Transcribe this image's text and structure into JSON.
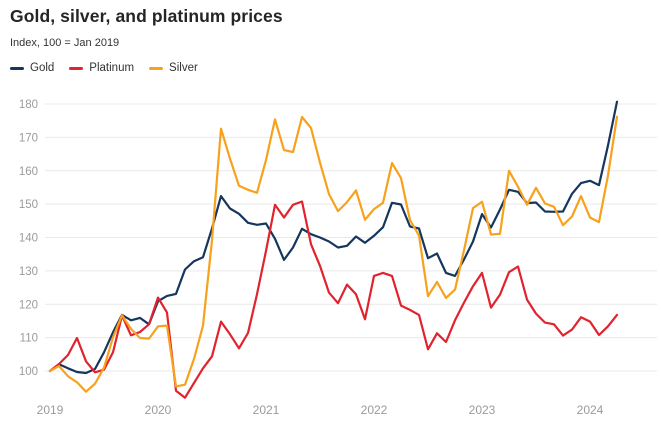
{
  "header": {
    "title": "Gold, silver, and platinum prices",
    "subtitle": "Index, 100 = Jan 2019"
  },
  "chart_data": {
    "type": "line",
    "title": "Gold, silver, and platinum prices",
    "subtitle": "Index, 100 = Jan 2019",
    "x_unit": "month",
    "x_start": "2019-01",
    "x_end": "2024-04",
    "x_tick_labels": [
      "2019",
      "2020",
      "2021",
      "2022",
      "2023",
      "2024"
    ],
    "y_ticks": [
      100,
      110,
      120,
      130,
      140,
      150,
      160,
      170,
      180
    ],
    "ylim": [
      92,
      181
    ],
    "grid": "horizontal",
    "legend_position": "top",
    "axis_text_color": "#9b9b9b",
    "grid_color": "#e9e9e9",
    "series": [
      {
        "name": "Gold",
        "color": "#15365d",
        "values": [
          100,
          102,
          100.8,
          99.7,
          99.4,
          100.6,
          105.6,
          111.6,
          116.8,
          115.2,
          115.9,
          114,
          120.9,
          122.5,
          123.1,
          130.4,
          132.9,
          134.1,
          142.7,
          152.4,
          148.7,
          147.1,
          144.4,
          143.8,
          144.2,
          139.6,
          133.3,
          137,
          142.6,
          141,
          140,
          138.8,
          137,
          137.5,
          140.3,
          138.4,
          140.5,
          143.1,
          150.4,
          149.9,
          143.3,
          142.7,
          133.8,
          135.2,
          129.4,
          128.5,
          133.4,
          138.8,
          147,
          143,
          148.4,
          154.3,
          153.7,
          150.3,
          150.5,
          147.8,
          147.7,
          147.8,
          153.1,
          156.3,
          157,
          155.7,
          167.6,
          180.7
        ]
      },
      {
        "name": "Platinum",
        "color": "#e0232e",
        "values": [
          100,
          102.1,
          104.8,
          109.9,
          102.9,
          99.6,
          100.4,
          105.6,
          116.6,
          110.7,
          111.7,
          114,
          122,
          117.5,
          94.1,
          92,
          96.4,
          100.8,
          104.4,
          114.8,
          111,
          106.8,
          111.4,
          123,
          136,
          149.8,
          146,
          149.8,
          150.8,
          138,
          131.5,
          123.5,
          120.3,
          125.9,
          123,
          115.5,
          128.5,
          129.4,
          128.5,
          119.6,
          118.3,
          116.8,
          106.5,
          111.3,
          108.7,
          115.2,
          120.5,
          125.4,
          129.4,
          119,
          122.9,
          129.6,
          131.3,
          121.4,
          117.2,
          114.5,
          114,
          110.6,
          112.4,
          116.1,
          114.8,
          110.8,
          113.4,
          116.8
        ]
      },
      {
        "name": "Silver",
        "color": "#f7a11c",
        "values": [
          100,
          101.5,
          98.4,
          96.6,
          93.8,
          96.2,
          101,
          110.1,
          116.7,
          112.6,
          109.9,
          109.7,
          113.4,
          113.6,
          95.4,
          95.9,
          103.6,
          113.6,
          139.2,
          172.6,
          163.6,
          155.5,
          154.3,
          153.4,
          163.2,
          175.4,
          166.2,
          165.6,
          176.1,
          172.8,
          162.4,
          153,
          147.9,
          150.6,
          154.1,
          145.3,
          148.5,
          150.4,
          162.3,
          157.8,
          145.2,
          140.6,
          122.4,
          126.7,
          121.9,
          124.4,
          136.2,
          148.8,
          150.7,
          140.9,
          141.1,
          160,
          155.2,
          149.8,
          154.9,
          150.2,
          149.2,
          143.7,
          146.3,
          152.4,
          146,
          144.6,
          158.6,
          176.2
        ]
      }
    ]
  }
}
